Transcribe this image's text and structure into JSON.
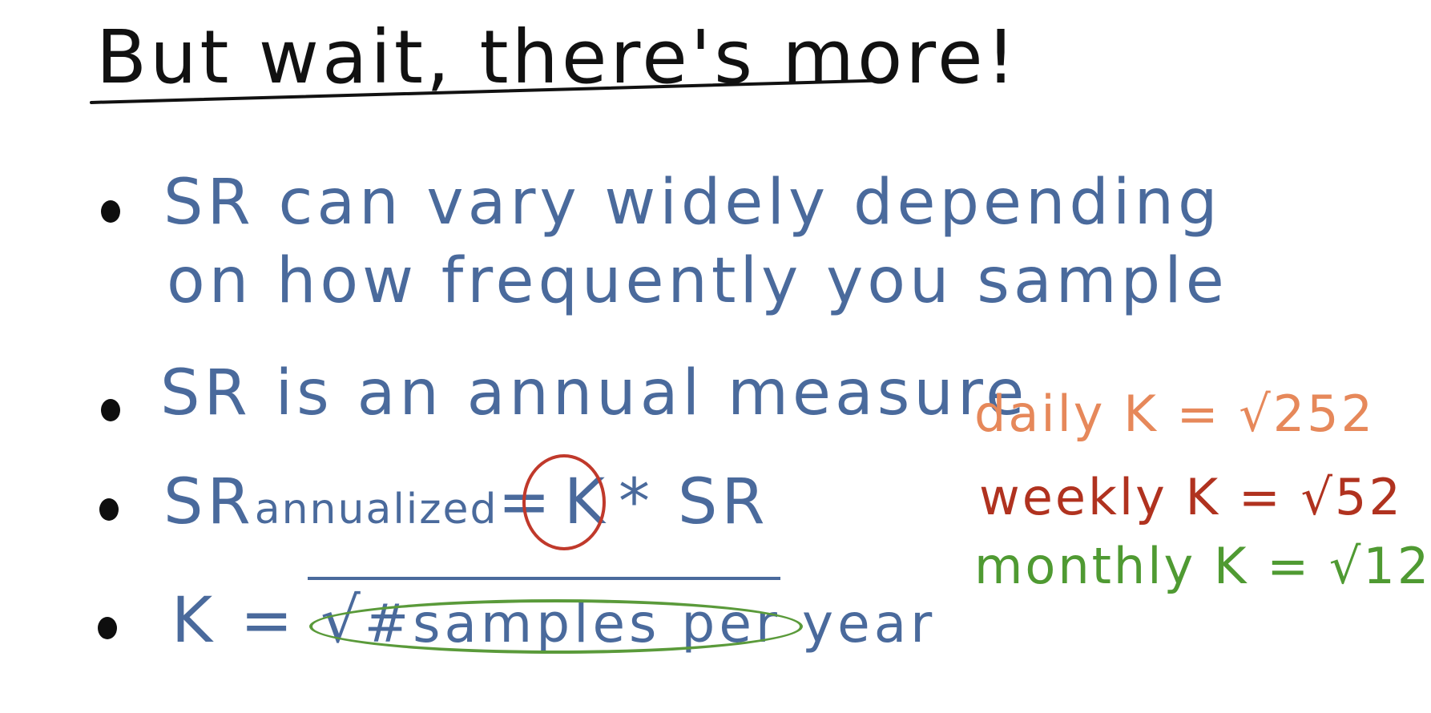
{
  "title": "But wait, there's more!",
  "bullets": [
    {
      "line1": "SR can vary widely depending",
      "line2": "on how frequently you sample"
    },
    {
      "line1": "SR is an annual measure"
    },
    {
      "prefix": "SR",
      "subscript": "annualized",
      "middle": " = ",
      "k": "K",
      "suffix": " * SR"
    },
    {
      "prefix": "K = √",
      "radicand": "#samples per year"
    }
  ],
  "side_notes": {
    "daily": "daily K = √252",
    "weekly": "weekly K = √52",
    "monthly": "monthly K = √12"
  },
  "colors": {
    "ink": "#111111",
    "blue": "#4a6a9c",
    "orange": "#e6885a",
    "red": "#b0321f",
    "green": "#4f9a32"
  }
}
